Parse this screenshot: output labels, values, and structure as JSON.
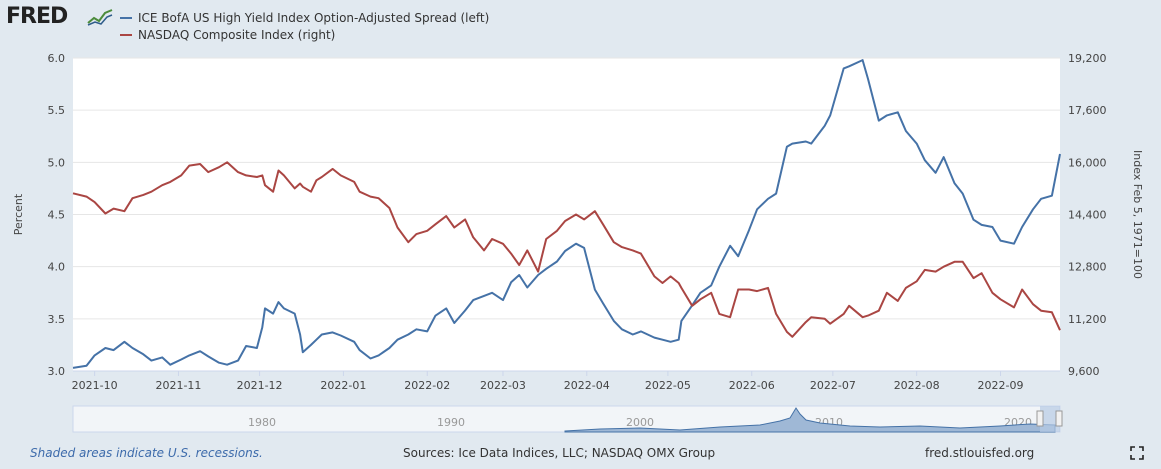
{
  "header": {
    "logo_text": "FRED",
    "logo_icon": "trend-line-icon"
  },
  "chart_data": {
    "type": "line",
    "title": "",
    "xlabel": "",
    "x_ticks": [
      "2021-10",
      "2021-11",
      "2021-12",
      "2022-01",
      "2022-02",
      "2022-03",
      "2022-04",
      "2022-05",
      "2022-06",
      "2022-07",
      "2022-08",
      "2022-09"
    ],
    "x_range": [
      "2021-09-23",
      "2022-09-23"
    ],
    "y_left": {
      "label": "Percent",
      "range": [
        3.0,
        6.0
      ],
      "ticks": [
        "3.0",
        "3.5",
        "4.0",
        "4.5",
        "5.0",
        "5.5",
        "6.0"
      ]
    },
    "y_right": {
      "label": "Index Feb 5, 1971=100",
      "range": [
        9600,
        19200
      ],
      "ticks": [
        "9,600",
        "11,200",
        "12,800",
        "14,400",
        "16,000",
        "17,600",
        "19,200"
      ]
    },
    "grid": "horizontal",
    "legend_position": "top-left",
    "series": [
      {
        "name": "ICE BofA US High Yield Index Option-Adjusted Spread (left)",
        "axis": "left",
        "color": "#4572a7",
        "points": [
          [
            "2021-09-23",
            3.03
          ],
          [
            "2021-09-28",
            3.05
          ],
          [
            "2021-10-01",
            3.15
          ],
          [
            "2021-10-05",
            3.22
          ],
          [
            "2021-10-08",
            3.2
          ],
          [
            "2021-10-12",
            3.28
          ],
          [
            "2021-10-15",
            3.22
          ],
          [
            "2021-10-19",
            3.16
          ],
          [
            "2021-10-22",
            3.1
          ],
          [
            "2021-10-26",
            3.13
          ],
          [
            "2021-10-29",
            3.06
          ],
          [
            "2021-11-02",
            3.11
          ],
          [
            "2021-11-05",
            3.15
          ],
          [
            "2021-11-09",
            3.19
          ],
          [
            "2021-11-12",
            3.14
          ],
          [
            "2021-11-16",
            3.08
          ],
          [
            "2021-11-19",
            3.06
          ],
          [
            "2021-11-23",
            3.1
          ],
          [
            "2021-11-26",
            3.24
          ],
          [
            "2021-11-30",
            3.22
          ],
          [
            "2021-12-02",
            3.42
          ],
          [
            "2021-12-03",
            3.6
          ],
          [
            "2021-12-06",
            3.55
          ],
          [
            "2021-12-08",
            3.66
          ],
          [
            "2021-12-10",
            3.6
          ],
          [
            "2021-12-14",
            3.55
          ],
          [
            "2021-12-16",
            3.35
          ],
          [
            "2021-12-17",
            3.18
          ],
          [
            "2021-12-20",
            3.25
          ],
          [
            "2021-12-22",
            3.3
          ],
          [
            "2021-12-24",
            3.35
          ],
          [
            "2021-12-28",
            3.37
          ],
          [
            "2021-12-31",
            3.34
          ],
          [
            "2022-01-05",
            3.28
          ],
          [
            "2022-01-07",
            3.2
          ],
          [
            "2022-01-11",
            3.12
          ],
          [
            "2022-01-14",
            3.15
          ],
          [
            "2022-01-18",
            3.22
          ],
          [
            "2022-01-21",
            3.3
          ],
          [
            "2022-01-25",
            3.35
          ],
          [
            "2022-01-28",
            3.4
          ],
          [
            "2022-02-01",
            3.38
          ],
          [
            "2022-02-04",
            3.53
          ],
          [
            "2022-02-08",
            3.6
          ],
          [
            "2022-02-11",
            3.46
          ],
          [
            "2022-02-15",
            3.58
          ],
          [
            "2022-02-18",
            3.68
          ],
          [
            "2022-02-22",
            3.72
          ],
          [
            "2022-02-25",
            3.75
          ],
          [
            "2022-03-01",
            3.68
          ],
          [
            "2022-03-04",
            3.85
          ],
          [
            "2022-03-07",
            3.92
          ],
          [
            "2022-03-10",
            3.8
          ],
          [
            "2022-03-14",
            3.92
          ],
          [
            "2022-03-17",
            3.98
          ],
          [
            "2022-03-21",
            4.05
          ],
          [
            "2022-03-24",
            4.15
          ],
          [
            "2022-03-28",
            4.22
          ],
          [
            "2022-03-31",
            4.18
          ],
          [
            "2022-04-04",
            3.78
          ],
          [
            "2022-04-07",
            3.65
          ],
          [
            "2022-04-11",
            3.48
          ],
          [
            "2022-04-14",
            3.4
          ],
          [
            "2022-04-18",
            3.35
          ],
          [
            "2022-04-21",
            3.38
          ],
          [
            "2022-04-26",
            3.32
          ],
          [
            "2022-04-29",
            3.3
          ],
          [
            "2022-05-02",
            3.28
          ],
          [
            "2022-05-05",
            3.3
          ],
          [
            "2022-05-06",
            3.48
          ],
          [
            "2022-05-10",
            3.63
          ],
          [
            "2022-05-13",
            3.75
          ],
          [
            "2022-05-17",
            3.82
          ],
          [
            "2022-05-20",
            4.0
          ],
          [
            "2022-05-24",
            4.2
          ],
          [
            "2022-05-27",
            4.1
          ],
          [
            "2022-05-31",
            4.35
          ],
          [
            "2022-06-03",
            4.55
          ],
          [
            "2022-06-07",
            4.65
          ],
          [
            "2022-06-10",
            4.7
          ],
          [
            "2022-06-14",
            5.15
          ],
          [
            "2022-06-16",
            5.18
          ],
          [
            "2022-06-21",
            5.2
          ],
          [
            "2022-06-23",
            5.18
          ],
          [
            "2022-06-28",
            5.35
          ],
          [
            "2022-06-30",
            5.45
          ],
          [
            "2022-07-05",
            5.9
          ],
          [
            "2022-07-07",
            5.92
          ],
          [
            "2022-07-12",
            5.98
          ],
          [
            "2022-07-14",
            5.8
          ],
          [
            "2022-07-18",
            5.4
          ],
          [
            "2022-07-21",
            5.45
          ],
          [
            "2022-07-25",
            5.48
          ],
          [
            "2022-07-28",
            5.3
          ],
          [
            "2022-08-01",
            5.18
          ],
          [
            "2022-08-04",
            5.02
          ],
          [
            "2022-08-08",
            4.9
          ],
          [
            "2022-08-11",
            5.05
          ],
          [
            "2022-08-15",
            4.8
          ],
          [
            "2022-08-18",
            4.7
          ],
          [
            "2022-08-22",
            4.45
          ],
          [
            "2022-08-25",
            4.4
          ],
          [
            "2022-08-29",
            4.38
          ],
          [
            "2022-09-01",
            4.25
          ],
          [
            "2022-09-06",
            4.22
          ],
          [
            "2022-09-09",
            4.38
          ],
          [
            "2022-09-13",
            4.55
          ],
          [
            "2022-09-16",
            4.65
          ],
          [
            "2022-09-20",
            4.68
          ],
          [
            "2022-09-23",
            5.08
          ]
        ]
      },
      {
        "name": "NASDAQ Composite Index (right)",
        "axis": "right",
        "color": "#aa4643",
        "points": [
          [
            "2021-09-23",
            15050
          ],
          [
            "2021-09-28",
            14950
          ],
          [
            "2021-10-01",
            14780
          ],
          [
            "2021-10-05",
            14430
          ],
          [
            "2021-10-08",
            14580
          ],
          [
            "2021-10-12",
            14500
          ],
          [
            "2021-10-15",
            14900
          ],
          [
            "2021-10-19",
            15000
          ],
          [
            "2021-10-22",
            15100
          ],
          [
            "2021-10-26",
            15300
          ],
          [
            "2021-10-29",
            15400
          ],
          [
            "2021-11-02",
            15600
          ],
          [
            "2021-11-05",
            15900
          ],
          [
            "2021-11-09",
            15950
          ],
          [
            "2021-11-12",
            15700
          ],
          [
            "2021-11-16",
            15850
          ],
          [
            "2021-11-19",
            16000
          ],
          [
            "2021-11-23",
            15700
          ],
          [
            "2021-11-26",
            15600
          ],
          [
            "2021-11-30",
            15550
          ],
          [
            "2021-12-02",
            15600
          ],
          [
            "2021-12-03",
            15300
          ],
          [
            "2021-12-06",
            15100
          ],
          [
            "2021-12-08",
            15750
          ],
          [
            "2021-12-10",
            15600
          ],
          [
            "2021-12-14",
            15200
          ],
          [
            "2021-12-16",
            15350
          ],
          [
            "2021-12-17",
            15250
          ],
          [
            "2021-12-20",
            15100
          ],
          [
            "2021-12-22",
            15450
          ],
          [
            "2021-12-24",
            15550
          ],
          [
            "2021-12-28",
            15800
          ],
          [
            "2021-12-31",
            15600
          ],
          [
            "2022-01-05",
            15400
          ],
          [
            "2022-01-07",
            15100
          ],
          [
            "2022-01-11",
            14950
          ],
          [
            "2022-01-14",
            14900
          ],
          [
            "2022-01-18",
            14600
          ],
          [
            "2022-01-21",
            14000
          ],
          [
            "2022-01-25",
            13550
          ],
          [
            "2022-01-28",
            13800
          ],
          [
            "2022-02-01",
            13900
          ],
          [
            "2022-02-04",
            14100
          ],
          [
            "2022-02-08",
            14350
          ],
          [
            "2022-02-11",
            14000
          ],
          [
            "2022-02-15",
            14250
          ],
          [
            "2022-02-18",
            13700
          ],
          [
            "2022-02-22",
            13300
          ],
          [
            "2022-02-25",
            13650
          ],
          [
            "2022-03-01",
            13500
          ],
          [
            "2022-03-04",
            13200
          ],
          [
            "2022-03-07",
            12850
          ],
          [
            "2022-03-10",
            13300
          ],
          [
            "2022-03-14",
            12650
          ],
          [
            "2022-03-17",
            13650
          ],
          [
            "2022-03-21",
            13900
          ],
          [
            "2022-03-24",
            14200
          ],
          [
            "2022-03-28",
            14400
          ],
          [
            "2022-03-31",
            14250
          ],
          [
            "2022-04-04",
            14500
          ],
          [
            "2022-04-07",
            14100
          ],
          [
            "2022-04-11",
            13550
          ],
          [
            "2022-04-14",
            13400
          ],
          [
            "2022-04-18",
            13300
          ],
          [
            "2022-04-21",
            13200
          ],
          [
            "2022-04-26",
            12500
          ],
          [
            "2022-04-29",
            12300
          ],
          [
            "2022-05-02",
            12500
          ],
          [
            "2022-05-05",
            12300
          ],
          [
            "2022-05-06",
            12150
          ],
          [
            "2022-05-10",
            11600
          ],
          [
            "2022-05-13",
            11800
          ],
          [
            "2022-05-17",
            12000
          ],
          [
            "2022-05-20",
            11350
          ],
          [
            "2022-05-24",
            11250
          ],
          [
            "2022-05-27",
            12100
          ],
          [
            "2022-05-31",
            12100
          ],
          [
            "2022-06-03",
            12050
          ],
          [
            "2022-06-07",
            12150
          ],
          [
            "2022-06-10",
            11350
          ],
          [
            "2022-06-14",
            10800
          ],
          [
            "2022-06-16",
            10650
          ],
          [
            "2022-06-21",
            11100
          ],
          [
            "2022-06-23",
            11250
          ],
          [
            "2022-06-28",
            11200
          ],
          [
            "2022-06-30",
            11050
          ],
          [
            "2022-07-05",
            11350
          ],
          [
            "2022-07-07",
            11600
          ],
          [
            "2022-07-12",
            11250
          ],
          [
            "2022-07-14",
            11300
          ],
          [
            "2022-07-18",
            11450
          ],
          [
            "2022-07-21",
            12000
          ],
          [
            "2022-07-25",
            11750
          ],
          [
            "2022-07-28",
            12150
          ],
          [
            "2022-08-01",
            12350
          ],
          [
            "2022-08-04",
            12700
          ],
          [
            "2022-08-08",
            12650
          ],
          [
            "2022-08-11",
            12800
          ],
          [
            "2022-08-15",
            12950
          ],
          [
            "2022-08-18",
            12950
          ],
          [
            "2022-08-22",
            12450
          ],
          [
            "2022-08-25",
            12600
          ],
          [
            "2022-08-29",
            12000
          ],
          [
            "2022-09-01",
            11800
          ],
          [
            "2022-09-06",
            11550
          ],
          [
            "2022-09-09",
            12100
          ],
          [
            "2022-09-13",
            11650
          ],
          [
            "2022-09-16",
            11450
          ],
          [
            "2022-09-20",
            11400
          ],
          [
            "2022-09-23",
            10850
          ]
        ]
      }
    ],
    "annotations": []
  },
  "navigator": {
    "labels": [
      "1980",
      "1990",
      "2000",
      "2010",
      "2020"
    ]
  },
  "footer": {
    "recession_note": "Shaded areas indicate U.S. recessions.",
    "sources": "Sources: Ice Data Indices, LLC; NASDAQ OMX Group",
    "site": "fred.stlouisfed.org"
  },
  "colors": {
    "background": "#e1e9f0",
    "plot_bg": "#ffffff",
    "accent": "#3d6bab"
  }
}
